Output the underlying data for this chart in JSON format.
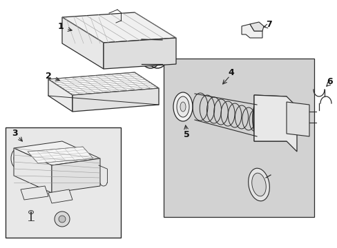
{
  "background_color": "#ffffff",
  "panel_color": "#d4d4d4",
  "line_color": "#2a2a2a",
  "label_color": "#111111",
  "figsize": [
    4.89,
    3.6
  ],
  "dpi": 100
}
